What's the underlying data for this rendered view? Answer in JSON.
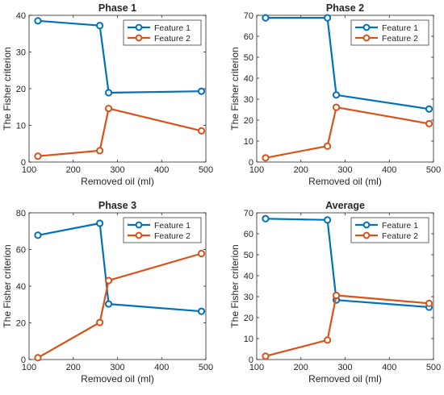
{
  "colors": {
    "feature_1": "#0072BD",
    "feature_2": "#D95319",
    "axis": "#262626"
  },
  "chart_data": [
    {
      "type": "line",
      "title": "Phase 1",
      "xlabel": "Removed oil (ml)",
      "ylabel": "The Fisher criterion",
      "xlim": [
        100,
        500
      ],
      "ylim": [
        0,
        40
      ],
      "xticks": [
        100,
        200,
        300,
        400,
        500
      ],
      "yticks": [
        0,
        10,
        20,
        30,
        40
      ],
      "x": [
        120,
        260,
        280,
        490
      ],
      "series": [
        {
          "name": "Feature 1",
          "values": [
            38.5,
            37.2,
            18.9,
            19.3
          ]
        },
        {
          "name": "Feature 2",
          "values": [
            1.6,
            3.1,
            14.6,
            8.5
          ]
        }
      ],
      "legend": "top-right",
      "grid": false
    },
    {
      "type": "line",
      "title": "Phase 2",
      "xlabel": "Removed oil (ml)",
      "ylabel": "The Fisher criterion",
      "xlim": [
        100,
        500
      ],
      "ylim": [
        0,
        70
      ],
      "xticks": [
        100,
        200,
        300,
        400,
        500
      ],
      "yticks": [
        0,
        10,
        20,
        30,
        40,
        50,
        60,
        70
      ],
      "x": [
        120,
        260,
        280,
        490
      ],
      "series": [
        {
          "name": "Feature 1",
          "values": [
            68.8,
            68.8,
            32.0,
            25.3
          ]
        },
        {
          "name": "Feature 2",
          "values": [
            2.0,
            7.6,
            26.1,
            18.3
          ]
        }
      ],
      "legend": "top-right",
      "grid": false
    },
    {
      "type": "line",
      "title": "Phase 3",
      "xlabel": "Removed oil (ml)",
      "ylabel": "The Fisher criterion",
      "xlim": [
        100,
        500
      ],
      "ylim": [
        0,
        80
      ],
      "xticks": [
        100,
        200,
        300,
        400,
        500
      ],
      "yticks": [
        0,
        20,
        40,
        60,
        80
      ],
      "x": [
        120,
        260,
        280,
        490
      ],
      "series": [
        {
          "name": "Feature 1",
          "values": [
            67.8,
            74.3,
            30.3,
            26.3
          ]
        },
        {
          "name": "Feature 2",
          "values": [
            1.0,
            20.2,
            43.1,
            57.8
          ]
        }
      ],
      "legend": "top-right",
      "grid": false
    },
    {
      "type": "line",
      "title": "Average",
      "xlabel": "Removed oil (ml)",
      "ylabel": "The Fisher criterion",
      "xlim": [
        100,
        500
      ],
      "ylim": [
        0,
        70
      ],
      "xticks": [
        100,
        200,
        300,
        400,
        500
      ],
      "yticks": [
        0,
        10,
        20,
        30,
        40,
        50,
        60,
        70
      ],
      "x": [
        120,
        260,
        280,
        490
      ],
      "series": [
        {
          "name": "Feature 1",
          "values": [
            67.2,
            66.6,
            28.4,
            25.0
          ]
        },
        {
          "name": "Feature 2",
          "values": [
            1.6,
            9.3,
            30.6,
            26.8
          ]
        }
      ],
      "legend": "top-right",
      "grid": false
    }
  ]
}
